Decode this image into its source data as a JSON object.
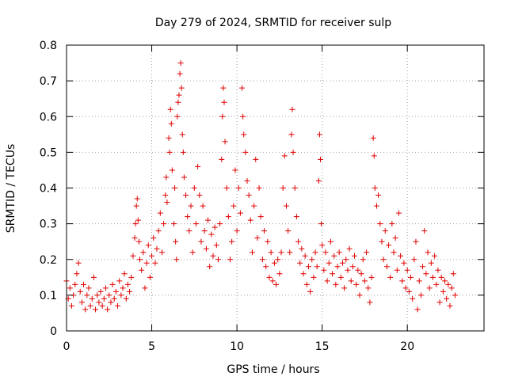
{
  "chart_data": {
    "type": "scatter",
    "title": "Day 279 of 2024, SRMTID for receiver sulp",
    "xlabel": "GPS time / hours",
    "ylabel": "SRMTID / TECUs",
    "xlim": [
      0,
      24.5
    ],
    "ylim": [
      0,
      0.8
    ],
    "xticks": [
      0,
      5,
      10,
      15,
      20
    ],
    "xtick_labels": [
      "0",
      "5",
      "10",
      "15",
      "20"
    ],
    "yticks": [
      0,
      0.1,
      0.2,
      0.3,
      0.4,
      0.5,
      0.6,
      0.7,
      0.8
    ],
    "ytick_labels": [
      "0",
      "0.1",
      "0.2",
      "0.3",
      "0.4",
      "0.5",
      "0.6",
      "0.7",
      "0.8"
    ],
    "grid": true,
    "marker": "+",
    "color": "#e00000",
    "series": [
      {
        "name": "SRMTID",
        "points": [
          [
            0.0,
            0.14
          ],
          [
            0.1,
            0.09
          ],
          [
            0.2,
            0.12
          ],
          [
            0.3,
            0.07
          ],
          [
            0.4,
            0.1
          ],
          [
            0.5,
            0.13
          ],
          [
            0.6,
            0.16
          ],
          [
            0.7,
            0.19
          ],
          [
            0.8,
            0.11
          ],
          [
            0.9,
            0.08
          ],
          [
            1.0,
            0.13
          ],
          [
            1.1,
            0.06
          ],
          [
            1.2,
            0.1
          ],
          [
            1.3,
            0.12
          ],
          [
            1.4,
            0.07
          ],
          [
            1.5,
            0.09
          ],
          [
            1.6,
            0.15
          ],
          [
            1.7,
            0.06
          ],
          [
            1.8,
            0.1
          ],
          [
            1.9,
            0.08
          ],
          [
            2.0,
            0.11
          ],
          [
            2.1,
            0.07
          ],
          [
            2.2,
            0.09
          ],
          [
            2.3,
            0.12
          ],
          [
            2.4,
            0.06
          ],
          [
            2.5,
            0.1
          ],
          [
            2.6,
            0.08
          ],
          [
            2.7,
            0.13
          ],
          [
            2.8,
            0.09
          ],
          [
            2.9,
            0.11
          ],
          [
            3.0,
            0.07
          ],
          [
            3.1,
            0.14
          ],
          [
            3.2,
            0.1
          ],
          [
            3.3,
            0.12
          ],
          [
            3.4,
            0.16
          ],
          [
            3.5,
            0.09
          ],
          [
            3.6,
            0.13
          ],
          [
            3.7,
            0.11
          ],
          [
            3.8,
            0.15
          ],
          [
            3.9,
            0.21
          ],
          [
            4.0,
            0.26
          ],
          [
            4.05,
            0.3
          ],
          [
            4.1,
            0.35
          ],
          [
            4.15,
            0.37
          ],
          [
            4.2,
            0.31
          ],
          [
            4.25,
            0.25
          ],
          [
            4.3,
            0.2
          ],
          [
            4.4,
            0.17
          ],
          [
            4.5,
            0.22
          ],
          [
            4.6,
            0.12
          ],
          [
            4.7,
            0.19
          ],
          [
            4.8,
            0.24
          ],
          [
            4.9,
            0.15
          ],
          [
            5.0,
            0.21
          ],
          [
            5.1,
            0.26
          ],
          [
            5.2,
            0.19
          ],
          [
            5.3,
            0.23
          ],
          [
            5.4,
            0.28
          ],
          [
            5.5,
            0.33
          ],
          [
            5.6,
            0.22
          ],
          [
            5.7,
            0.3
          ],
          [
            5.8,
            0.38
          ],
          [
            5.85,
            0.43
          ],
          [
            5.9,
            0.36
          ],
          [
            6.0,
            0.54
          ],
          [
            6.05,
            0.5
          ],
          [
            6.1,
            0.62
          ],
          [
            6.15,
            0.58
          ],
          [
            6.2,
            0.45
          ],
          [
            6.3,
            0.3
          ],
          [
            6.35,
            0.4
          ],
          [
            6.4,
            0.25
          ],
          [
            6.45,
            0.2
          ],
          [
            6.5,
            0.6
          ],
          [
            6.55,
            0.64
          ],
          [
            6.6,
            0.66
          ],
          [
            6.65,
            0.72
          ],
          [
            6.7,
            0.75
          ],
          [
            6.75,
            0.68
          ],
          [
            6.8,
            0.55
          ],
          [
            6.85,
            0.5
          ],
          [
            6.9,
            0.43
          ],
          [
            7.0,
            0.38
          ],
          [
            7.1,
            0.32
          ],
          [
            7.2,
            0.28
          ],
          [
            7.3,
            0.35
          ],
          [
            7.4,
            0.22
          ],
          [
            7.5,
            0.4
          ],
          [
            7.6,
            0.3
          ],
          [
            7.7,
            0.46
          ],
          [
            7.8,
            0.38
          ],
          [
            7.9,
            0.25
          ],
          [
            8.0,
            0.35
          ],
          [
            8.1,
            0.28
          ],
          [
            8.2,
            0.23
          ],
          [
            8.3,
            0.31
          ],
          [
            8.4,
            0.18
          ],
          [
            8.5,
            0.27
          ],
          [
            8.6,
            0.21
          ],
          [
            8.7,
            0.29
          ],
          [
            8.8,
            0.24
          ],
          [
            8.9,
            0.2
          ],
          [
            9.0,
            0.3
          ],
          [
            9.1,
            0.48
          ],
          [
            9.15,
            0.6
          ],
          [
            9.2,
            0.68
          ],
          [
            9.25,
            0.64
          ],
          [
            9.3,
            0.53
          ],
          [
            9.4,
            0.4
          ],
          [
            9.5,
            0.32
          ],
          [
            9.6,
            0.2
          ],
          [
            9.7,
            0.25
          ],
          [
            9.8,
            0.35
          ],
          [
            9.9,
            0.45
          ],
          [
            10.0,
            0.28
          ],
          [
            10.1,
            0.4
          ],
          [
            10.2,
            0.33
          ],
          [
            10.3,
            0.68
          ],
          [
            10.35,
            0.6
          ],
          [
            10.4,
            0.55
          ],
          [
            10.5,
            0.5
          ],
          [
            10.6,
            0.42
          ],
          [
            10.7,
            0.38
          ],
          [
            10.8,
            0.31
          ],
          [
            10.9,
            0.22
          ],
          [
            11.0,
            0.35
          ],
          [
            11.1,
            0.48
          ],
          [
            11.2,
            0.26
          ],
          [
            11.3,
            0.4
          ],
          [
            11.4,
            0.32
          ],
          [
            11.5,
            0.2
          ],
          [
            11.6,
            0.28
          ],
          [
            11.7,
            0.18
          ],
          [
            11.8,
            0.25
          ],
          [
            11.9,
            0.15
          ],
          [
            12.0,
            0.22
          ],
          [
            12.1,
            0.14
          ],
          [
            12.2,
            0.19
          ],
          [
            12.3,
            0.13
          ],
          [
            12.4,
            0.2
          ],
          [
            12.5,
            0.16
          ],
          [
            12.6,
            0.22
          ],
          [
            12.7,
            0.4
          ],
          [
            12.8,
            0.49
          ],
          [
            12.9,
            0.35
          ],
          [
            13.0,
            0.28
          ],
          [
            13.1,
            0.22
          ],
          [
            13.2,
            0.55
          ],
          [
            13.25,
            0.62
          ],
          [
            13.3,
            0.5
          ],
          [
            13.4,
            0.4
          ],
          [
            13.5,
            0.32
          ],
          [
            13.6,
            0.25
          ],
          [
            13.7,
            0.19
          ],
          [
            13.8,
            0.23
          ],
          [
            13.9,
            0.16
          ],
          [
            14.0,
            0.21
          ],
          [
            14.1,
            0.13
          ],
          [
            14.2,
            0.18
          ],
          [
            14.3,
            0.11
          ],
          [
            14.4,
            0.2
          ],
          [
            14.5,
            0.15
          ],
          [
            14.6,
            0.22
          ],
          [
            14.7,
            0.18
          ],
          [
            14.8,
            0.42
          ],
          [
            14.85,
            0.55
          ],
          [
            14.9,
            0.48
          ],
          [
            14.95,
            0.3
          ],
          [
            15.0,
            0.24
          ],
          [
            15.1,
            0.17
          ],
          [
            15.2,
            0.22
          ],
          [
            15.3,
            0.14
          ],
          [
            15.4,
            0.19
          ],
          [
            15.5,
            0.25
          ],
          [
            15.6,
            0.16
          ],
          [
            15.7,
            0.21
          ],
          [
            15.8,
            0.13
          ],
          [
            15.9,
            0.18
          ],
          [
            16.0,
            0.22
          ],
          [
            16.1,
            0.15
          ],
          [
            16.2,
            0.19
          ],
          [
            16.3,
            0.12
          ],
          [
            16.4,
            0.2
          ],
          [
            16.5,
            0.17
          ],
          [
            16.6,
            0.23
          ],
          [
            16.7,
            0.14
          ],
          [
            16.8,
            0.18
          ],
          [
            16.9,
            0.21
          ],
          [
            17.0,
            0.13
          ],
          [
            17.1,
            0.17
          ],
          [
            17.2,
            0.1
          ],
          [
            17.3,
            0.16
          ],
          [
            17.4,
            0.2
          ],
          [
            17.5,
            0.14
          ],
          [
            17.6,
            0.22
          ],
          [
            17.7,
            0.12
          ],
          [
            17.8,
            0.08
          ],
          [
            17.9,
            0.15
          ],
          [
            18.0,
            0.54
          ],
          [
            18.05,
            0.49
          ],
          [
            18.1,
            0.4
          ],
          [
            18.2,
            0.35
          ],
          [
            18.3,
            0.38
          ],
          [
            18.4,
            0.3
          ],
          [
            18.5,
            0.25
          ],
          [
            18.6,
            0.2
          ],
          [
            18.7,
            0.28
          ],
          [
            18.8,
            0.18
          ],
          [
            18.9,
            0.24
          ],
          [
            19.0,
            0.15
          ],
          [
            19.1,
            0.3
          ],
          [
            19.2,
            0.22
          ],
          [
            19.3,
            0.26
          ],
          [
            19.4,
            0.17
          ],
          [
            19.5,
            0.33
          ],
          [
            19.6,
            0.21
          ],
          [
            19.7,
            0.14
          ],
          [
            19.8,
            0.19
          ],
          [
            19.9,
            0.12
          ],
          [
            20.0,
            0.17
          ],
          [
            20.1,
            0.11
          ],
          [
            20.2,
            0.15
          ],
          [
            20.3,
            0.09
          ],
          [
            20.4,
            0.2
          ],
          [
            20.5,
            0.25
          ],
          [
            20.6,
            0.06
          ],
          [
            20.7,
            0.14
          ],
          [
            20.8,
            0.1
          ],
          [
            20.9,
            0.18
          ],
          [
            21.0,
            0.28
          ],
          [
            21.1,
            0.16
          ],
          [
            21.2,
            0.22
          ],
          [
            21.3,
            0.12
          ],
          [
            21.4,
            0.19
          ],
          [
            21.5,
            0.15
          ],
          [
            21.6,
            0.21
          ],
          [
            21.7,
            0.13
          ],
          [
            21.8,
            0.17
          ],
          [
            21.9,
            0.08
          ],
          [
            22.0,
            0.15
          ],
          [
            22.1,
            0.11
          ],
          [
            22.2,
            0.14
          ],
          [
            22.3,
            0.09
          ],
          [
            22.4,
            0.13
          ],
          [
            22.5,
            0.07
          ],
          [
            22.6,
            0.12
          ],
          [
            22.7,
            0.16
          ],
          [
            22.8,
            0.1
          ]
        ]
      }
    ]
  }
}
